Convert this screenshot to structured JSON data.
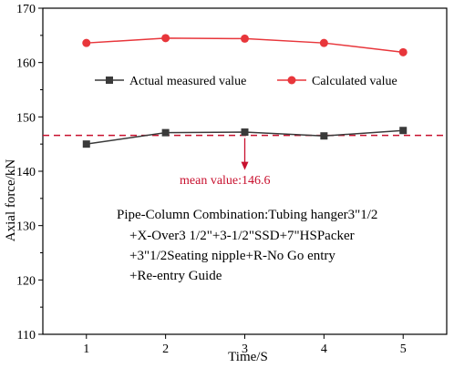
{
  "chart_data": {
    "type": "line",
    "title": "",
    "xlabel": "Time/S",
    "ylabel": "Axial force/kN",
    "x": [
      1,
      2,
      3,
      4,
      5
    ],
    "x_ticks": [
      "1",
      "2",
      "3",
      "4",
      "5"
    ],
    "y_ticks": [
      "110",
      "120",
      "130",
      "140",
      "150",
      "160",
      "170"
    ],
    "xlim": [
      0.45,
      5.55
    ],
    "ylim": [
      110,
      170
    ],
    "grid": false,
    "legend_position": "upper-middle",
    "series": [
      {
        "name": "Actual measured value",
        "values": [
          145.0,
          147.1,
          147.2,
          146.5,
          147.5
        ],
        "color": "#3a3a3a",
        "marker": "square"
      },
      {
        "name": "Calculated value",
        "values": [
          163.6,
          164.5,
          164.4,
          163.6,
          161.9
        ],
        "color": "#e8363b",
        "marker": "circle"
      }
    ],
    "reference_line": {
      "value": 146.6,
      "style": "dashed",
      "color": "#c8102e"
    },
    "annotations": {
      "mean_label": "mean value:146.6",
      "mean_label_color": "#c8102e",
      "composition_lines": [
        "Pipe-Column Combination:Tubing hanger3\"1/2",
        "+X-Over3 1/2\"+3-1/2\"SSD+7\"HSPacker",
        "+3\"1/2Seating nipple+R-No Go entry",
        "+Re-entry Guide"
      ]
    }
  }
}
